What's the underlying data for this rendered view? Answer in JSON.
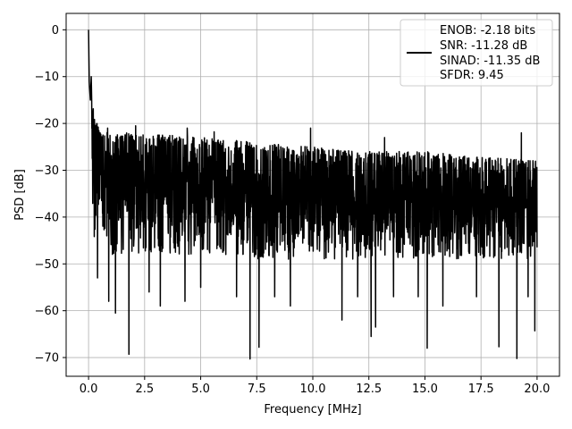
{
  "chart_data": {
    "type": "line",
    "title": "",
    "xlabel": "Frequency [MHz]",
    "ylabel": "PSD [dB]",
    "xlim": [
      -1.0,
      21.0
    ],
    "ylim": [
      -74,
      3.5
    ],
    "x_ticks": [
      0.0,
      2.5,
      5.0,
      7.5,
      10.0,
      12.5,
      15.0,
      17.5,
      20.0
    ],
    "x_tick_labels": [
      "0.0",
      "2.5",
      "5.0",
      "7.5",
      "10.0",
      "12.5",
      "15.0",
      "17.5",
      "20.0"
    ],
    "y_ticks": [
      0,
      -10,
      -20,
      -30,
      -40,
      -50,
      -60,
      -70
    ],
    "y_tick_labels": [
      "0",
      "−10",
      "−20",
      "−30",
      "−40",
      "−50",
      "−60",
      "−70"
    ],
    "grid": true,
    "legend_position": "top-right",
    "series": [
      {
        "color": "#000000",
        "envelope": [
          {
            "x": 0.0,
            "upper": 0.0,
            "lower": -36
          },
          {
            "x": 0.1,
            "upper": -12,
            "lower": -30
          },
          {
            "x": 0.25,
            "upper": -18,
            "lower": -45
          },
          {
            "x": 0.5,
            "upper": -21,
            "lower": -40
          },
          {
            "x": 1.0,
            "upper": -22,
            "lower": -48
          },
          {
            "x": 2.5,
            "upper": -22,
            "lower": -48
          },
          {
            "x": 5.0,
            "upper": -23,
            "lower": -48
          },
          {
            "x": 7.5,
            "upper": -24,
            "lower": -49
          },
          {
            "x": 10.0,
            "upper": -25,
            "lower": -49
          },
          {
            "x": 12.5,
            "upper": -26,
            "lower": -49
          },
          {
            "x": 15.0,
            "upper": -26,
            "lower": -49
          },
          {
            "x": 17.5,
            "upper": -27,
            "lower": -49
          },
          {
            "x": 20.0,
            "upper": -28,
            "lower": -49
          }
        ],
        "peaks": [
          {
            "x": 0.0,
            "y": 0.0
          },
          {
            "x": 0.03,
            "y": -11
          },
          {
            "x": 0.08,
            "y": -15
          },
          {
            "x": 0.12,
            "y": -10
          }
        ],
        "dips": [
          {
            "x": 0.4,
            "y": -45
          },
          {
            "x": 0.4,
            "y": -53
          },
          {
            "x": 0.9,
            "y": -58
          },
          {
            "x": 1.2,
            "y": -60.5
          },
          {
            "x": 1.8,
            "y": -69.3
          },
          {
            "x": 2.7,
            "y": -56
          },
          {
            "x": 3.2,
            "y": -59
          },
          {
            "x": 4.3,
            "y": -58
          },
          {
            "x": 5.0,
            "y": -55
          },
          {
            "x": 6.6,
            "y": -57
          },
          {
            "x": 7.2,
            "y": -70.3
          },
          {
            "x": 7.6,
            "y": -67.8
          },
          {
            "x": 8.3,
            "y": -57
          },
          {
            "x": 9.0,
            "y": -59
          },
          {
            "x": 9.9,
            "y": -65.5
          },
          {
            "x": 11.3,
            "y": -62
          },
          {
            "x": 12.0,
            "y": -57
          },
          {
            "x": 12.6,
            "y": -65.5
          },
          {
            "x": 12.8,
            "y": -63.5
          },
          {
            "x": 13.6,
            "y": -57
          },
          {
            "x": 14.7,
            "y": -57
          },
          {
            "x": 15.1,
            "y": -68
          },
          {
            "x": 15.8,
            "y": -59
          },
          {
            "x": 17.3,
            "y": -57
          },
          {
            "x": 18.3,
            "y": -67.7
          },
          {
            "x": 19.1,
            "y": -70.2
          },
          {
            "x": 19.6,
            "y": -57
          },
          {
            "x": 19.9,
            "y": -64.3
          }
        ],
        "highs": [
          {
            "x": 0.85,
            "y": -21
          },
          {
            "x": 2.1,
            "y": -20.5
          },
          {
            "x": 4.4,
            "y": -21
          },
          {
            "x": 5.6,
            "y": -21.8
          },
          {
            "x": 9.9,
            "y": -21
          },
          {
            "x": 13.2,
            "y": -23
          },
          {
            "x": 19.3,
            "y": -22
          }
        ]
      }
    ],
    "legend": {
      "entries": [
        "ENOB: -2.18 bits",
        "SNR: -11.28 dB",
        "SINAD: -11.35 dB",
        "SFDR: 9.45"
      ]
    }
  }
}
